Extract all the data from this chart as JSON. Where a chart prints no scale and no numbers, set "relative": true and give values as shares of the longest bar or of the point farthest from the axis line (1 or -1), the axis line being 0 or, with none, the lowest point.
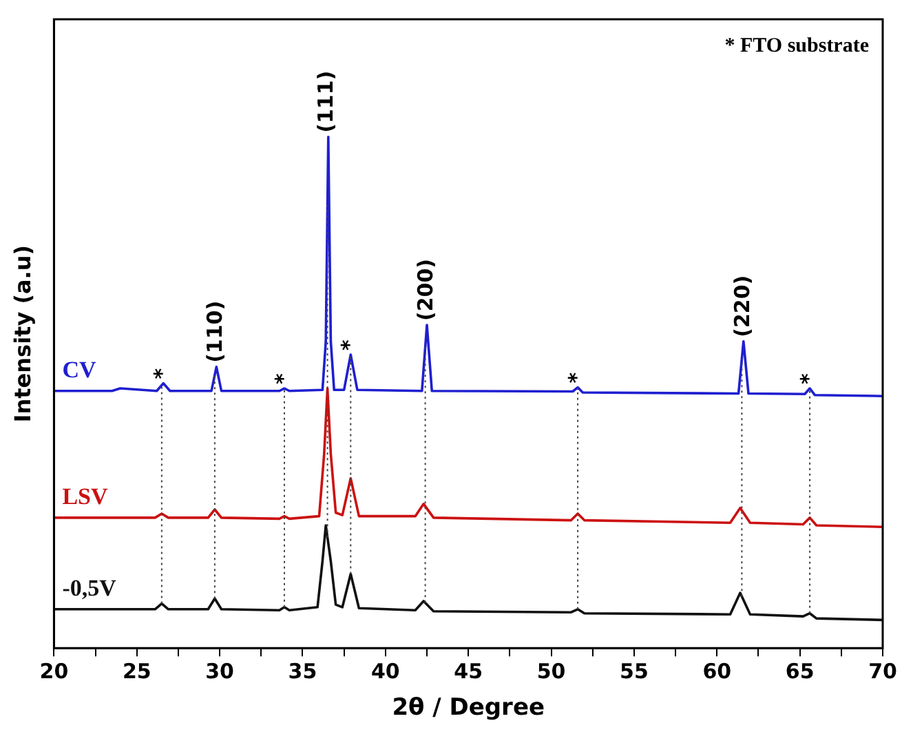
{
  "chart_data": {
    "type": "line",
    "relative": true,
    "xlabel": "2θ / Degree",
    "ylabel": "Intensity (a.u)",
    "xlim": [
      20,
      70
    ],
    "xticks": [
      20,
      {
        "value": 22.5,
        "label": null
      },
      25,
      {
        "value": 27.5,
        "label": null
      },
      30,
      {
        "value": 32.5,
        "label": null
      },
      35,
      {
        "value": 37.5,
        "label": null
      },
      40,
      {
        "value": 42.5,
        "label": null
      },
      45,
      {
        "value": 47.5,
        "label": null
      },
      50,
      {
        "value": 52.5,
        "label": null
      },
      55,
      {
        "value": 57.5,
        "label": null
      },
      60,
      {
        "value": 62.5,
        "label": null
      },
      65,
      {
        "value": 67.5,
        "label": null
      },
      70
    ],
    "tick_labels": "x",
    "marker": "none",
    "line_style": "solid",
    "series": [
      {
        "name": "CV",
        "color": "#1f1fd0",
        "x": [
          20,
          23.5,
          24,
          26.2,
          26.6,
          27.0,
          29.5,
          29.8,
          30.1,
          33.6,
          33.9,
          34.2,
          36.2,
          36.4,
          36.55,
          36.7,
          36.9,
          37.5,
          37.9,
          38.3,
          42.2,
          42.5,
          42.8,
          51.3,
          51.6,
          51.9,
          61.3,
          61.6,
          61.9,
          65.3,
          65.6,
          65.9,
          70
        ],
        "values": [
          0.503,
          0.503,
          0.508,
          0.503,
          0.518,
          0.503,
          0.503,
          0.55,
          0.503,
          0.503,
          0.508,
          0.503,
          0.505,
          0.6,
          1.0,
          0.6,
          0.505,
          0.505,
          0.574,
          0.505,
          0.503,
          0.632,
          0.503,
          0.502,
          0.51,
          0.5,
          0.498,
          0.6,
          0.498,
          0.497,
          0.508,
          0.495,
          0.493
        ]
      },
      {
        "name": "LSV",
        "color": "#cc1111",
        "x": [
          20,
          26.1,
          26.5,
          26.9,
          29.3,
          29.7,
          30.1,
          33.6,
          33.9,
          34.2,
          36.0,
          36.3,
          36.5,
          36.7,
          37.0,
          37.4,
          37.9,
          38.4,
          41.8,
          42.3,
          42.9,
          51.2,
          51.6,
          52.0,
          60.8,
          61.4,
          62.0,
          65.2,
          65.6,
          66.0,
          70
        ],
        "values": [
          0.255,
          0.255,
          0.263,
          0.255,
          0.255,
          0.271,
          0.255,
          0.253,
          0.258,
          0.253,
          0.258,
          0.38,
          0.508,
          0.38,
          0.265,
          0.26,
          0.332,
          0.258,
          0.258,
          0.282,
          0.255,
          0.25,
          0.263,
          0.25,
          0.245,
          0.274,
          0.245,
          0.242,
          0.255,
          0.24,
          0.237
        ]
      },
      {
        "name": "-0,5V",
        "color": "#111111",
        "x": [
          20,
          26.1,
          26.5,
          26.9,
          29.3,
          29.7,
          30.1,
          33.6,
          33.9,
          34.2,
          35.9,
          36.2,
          36.4,
          36.7,
          37.0,
          37.4,
          37.9,
          38.4,
          41.8,
          42.3,
          42.9,
          51.2,
          51.6,
          52.0,
          60.8,
          61.4,
          62.0,
          65.2,
          65.6,
          66.0,
          70
        ],
        "values": [
          0.076,
          0.076,
          0.087,
          0.076,
          0.076,
          0.097,
          0.076,
          0.074,
          0.08,
          0.074,
          0.08,
          0.17,
          0.24,
          0.17,
          0.085,
          0.08,
          0.145,
          0.078,
          0.074,
          0.092,
          0.072,
          0.07,
          0.076,
          0.068,
          0.066,
          0.108,
          0.066,
          0.062,
          0.068,
          0.058,
          0.055
        ]
      }
    ],
    "ref_lines": [
      {
        "axis": "x",
        "value": 26.5,
        "color": "#444444",
        "line_style": "dotted"
      },
      {
        "axis": "x",
        "value": 29.7,
        "color": "#444444",
        "line_style": "dotted"
      },
      {
        "axis": "x",
        "value": 33.9,
        "color": "#444444",
        "line_style": "dotted"
      },
      {
        "axis": "x",
        "value": 36.5,
        "color": "#444444",
        "line_style": "dotted"
      },
      {
        "axis": "x",
        "value": 37.9,
        "color": "#444444",
        "line_style": "dotted"
      },
      {
        "axis": "x",
        "value": 42.4,
        "color": "#444444",
        "line_style": "dotted"
      },
      {
        "axis": "x",
        "value": 51.6,
        "color": "#444444",
        "line_style": "dotted"
      },
      {
        "axis": "x",
        "value": 61.5,
        "color": "#444444",
        "line_style": "dotted"
      },
      {
        "axis": "x",
        "value": 65.6,
        "color": "#444444",
        "line_style": "dotted"
      }
    ],
    "annotations": [
      "* FTO substrate",
      {
        "text": "(110)",
        "x": 29.8,
        "y": 0.55
      },
      {
        "text": "(111)",
        "x": 36.5,
        "y": 1.0
      },
      {
        "text": "(200)",
        "x": 42.5,
        "y": 0.632
      },
      {
        "text": "(220)",
        "x": 61.6,
        "y": 0.6
      },
      {
        "text": "*",
        "x": 26.6,
        "y": 0.518
      },
      {
        "text": "*",
        "x": 33.9,
        "y": 0.508
      },
      {
        "text": "*",
        "x": 37.9,
        "y": 0.574
      },
      {
        "text": "*",
        "x": 51.6,
        "y": 0.51
      },
      {
        "text": "*",
        "x": 65.6,
        "y": 0.508
      }
    ]
  }
}
